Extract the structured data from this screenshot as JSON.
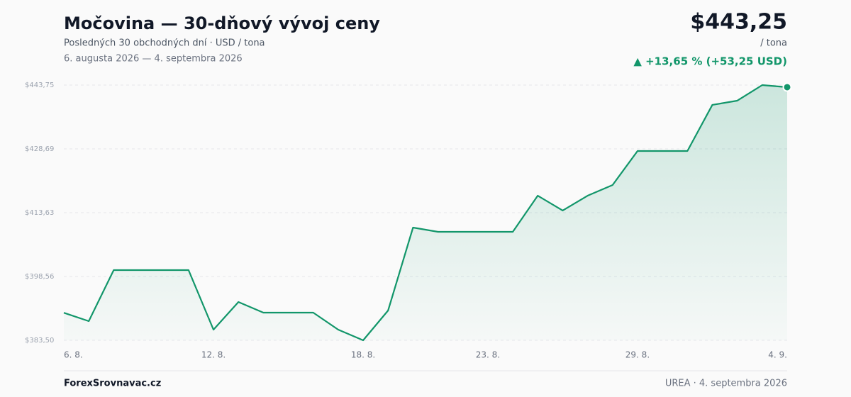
{
  "chart_data": {
    "type": "line",
    "title": "Močovina — 30-dňový vývoj ceny",
    "subtitle": "Posledných 30 obchodných dní · USD / tona",
    "date_range": "6. augusta 2026 — 4. septembra 2026",
    "price": "$443,25",
    "unit": "/ tona",
    "change": "▲ +13,65 % (+53,25 USD)",
    "categories": [
      "6. 8.",
      null,
      null,
      null,
      null,
      null,
      "12. 8.",
      null,
      null,
      null,
      null,
      null,
      "18. 8.",
      null,
      null,
      null,
      null,
      "23. 8.",
      null,
      null,
      null,
      null,
      null,
      "29. 8.",
      null,
      null,
      null,
      null,
      null,
      "4. 9."
    ],
    "series": [
      {
        "name": "Močovina",
        "color": "#12966a",
        "values": [
          390.0,
          388.02,
          400.07,
          400.07,
          400.07,
          400.07,
          386.01,
          392.54,
          390.03,
          390.03,
          390.03,
          386.01,
          383.5,
          390.53,
          410.11,
          409.11,
          409.11,
          409.11,
          409.11,
          417.64,
          414.13,
          417.64,
          420.15,
          428.19,
          428.19,
          428.19,
          439.07,
          440.07,
          443.75,
          443.25
        ]
      }
    ],
    "ylim": [
      383.5,
      443.75
    ],
    "yticks": [
      {
        "value": 383.5,
        "label": "$383,50"
      },
      {
        "value": 398.56,
        "label": "$398,56"
      },
      {
        "value": 413.63,
        "label": "$413,63"
      },
      {
        "value": 428.69,
        "label": "$428,69"
      },
      {
        "value": 443.75,
        "label": "$443,75"
      }
    ],
    "grid": true,
    "source": "ForexSrovnavac.cz",
    "footer_note": "UREA · 4. septembra 2026"
  }
}
